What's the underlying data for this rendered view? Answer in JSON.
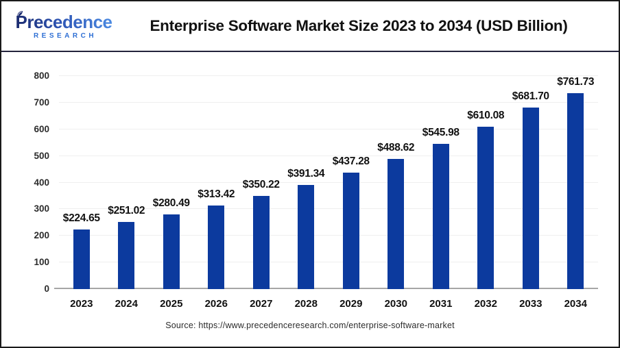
{
  "header": {
    "logo": {
      "brand": "Precedence",
      "subtitle": "RESEARCH"
    },
    "title": "Enterprise Software Market Size 2023 to 2034 (USD Billion)"
  },
  "chart_data": {
    "type": "bar",
    "title": "Enterprise Software Market Size 2023 to 2034 (USD Billion)",
    "categories": [
      "2023",
      "2024",
      "2025",
      "2026",
      "2027",
      "2028",
      "2029",
      "2030",
      "2031",
      "2032",
      "2033",
      "2034"
    ],
    "values": [
      224.65,
      251.02,
      280.49,
      313.42,
      350.22,
      391.34,
      437.28,
      488.62,
      545.98,
      610.08,
      681.7,
      761.73
    ],
    "labels": [
      "$224.65",
      "$251.02",
      "$280.49",
      "$313.42",
      "$350.22",
      "$391.34",
      "$437.28",
      "$488.62",
      "$545.98",
      "$610.08",
      "$681.70",
      "$761.73"
    ],
    "xlabel": "",
    "ylabel": "",
    "ylim": [
      0,
      800
    ],
    "ytick_step": 100,
    "yticks": [
      0,
      100,
      200,
      300,
      400,
      500,
      600,
      700,
      800
    ],
    "grid": true,
    "legend": "none",
    "bar_color": "#0c3a9e"
  },
  "footer": {
    "source": "Source: https://www.precedenceresearch.com/enterprise-software-market"
  },
  "colors": {
    "bar": "#0c3a9e",
    "title_text": "#111111",
    "logo_gradient_start": "#1a2a6e",
    "logo_gradient_end": "#4b8ae2",
    "logo_subtitle": "#2e6fd4",
    "gridline": "#efefef",
    "axis_line": "#a6a6a6",
    "frame_border": "#1b1b1b",
    "header_divider": "#23233c"
  }
}
